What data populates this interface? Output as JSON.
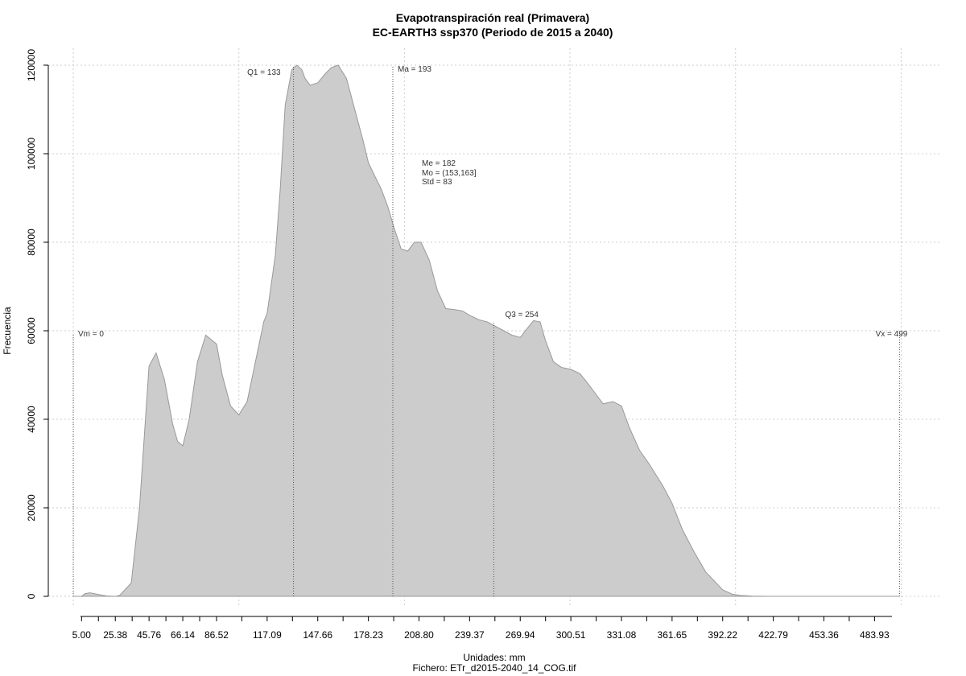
{
  "chart_data": {
    "type": "area",
    "title": "Evapotranspiración real (Primavera)",
    "subtitle": "EC-EARTH3 ssp370 (Periodo de 2015 a 2040)",
    "xlabel": "Unidades: mm",
    "ylabel": "Frecuencia",
    "footer": "Fichero: ETr_d2015-2040_14_COG.tif",
    "x_tick_labels": [
      "5.00",
      "25.38",
      "45.76",
      "66.14",
      "86.52",
      "117.09",
      "147.66",
      "178.23",
      "208.80",
      "239.37",
      "269.94",
      "300.51",
      "331.08",
      "361.65",
      "392.22",
      "422.79",
      "453.36",
      "483.93"
    ],
    "y_tick_labels": [
      "0",
      "20000",
      "40000",
      "60000",
      "80000",
      "100000",
      "120000"
    ],
    "xlim": [
      -0.5,
      510
    ],
    "ylim": [
      0,
      120000
    ],
    "grid": true,
    "fill_color": "#cccccc",
    "line_color": "#999999",
    "x": [
      0,
      5,
      7,
      10,
      20,
      25.38,
      28,
      30,
      35,
      40,
      45.76,
      50,
      55,
      60,
      63,
      66.14,
      70,
      75,
      80,
      86.52,
      90,
      95,
      100,
      105,
      110,
      115,
      117.09,
      122,
      125,
      128,
      132,
      135,
      138,
      140,
      143,
      147.66,
      152,
      156,
      160,
      165,
      170,
      175,
      178.23,
      182,
      186,
      190,
      194,
      198,
      202,
      206,
      210,
      215,
      220,
      225,
      230,
      235,
      239.37,
      245,
      250,
      255,
      260,
      265,
      270,
      273,
      278,
      282,
      285,
      290,
      295,
      300.51,
      306,
      310,
      315,
      320,
      326,
      331.08,
      336,
      342,
      348,
      356,
      361.65,
      368,
      375,
      382,
      392.22,
      398,
      403,
      410,
      420,
      430,
      440,
      453.36,
      470,
      483.93,
      499
    ],
    "y": [
      0,
      0,
      600,
      800,
      100,
      0,
      200,
      1000,
      3000,
      20000,
      52000,
      55000,
      49000,
      39000,
      35000,
      34000,
      40000,
      53000,
      59000,
      57000,
      50000,
      43000,
      41000,
      44000,
      53000,
      62000,
      64000,
      77000,
      92000,
      111000,
      119000,
      120000,
      119000,
      117000,
      115500,
      116000,
      118000,
      119500,
      120000,
      117000,
      110000,
      103000,
      98000,
      95000,
      92000,
      88000,
      83000,
      78500,
      78000,
      80000,
      80000,
      76000,
      69000,
      65000,
      64800,
      64500,
      63500,
      62500,
      62000,
      61000,
      60000,
      59000,
      58500,
      60000,
      62300,
      62000,
      58000,
      53000,
      51700,
      51300,
      50300,
      48500,
      46000,
      43500,
      44000,
      43000,
      38000,
      33000,
      29800,
      25000,
      21000,
      15000,
      10000,
      5500,
      1500,
      500,
      200,
      50,
      0,
      0,
      0,
      0,
      0,
      0,
      0
    ],
    "reference_lines": [
      {
        "label": "Vm = 0",
        "x": 0,
        "y": 59500
      },
      {
        "label": "Q1 = 133",
        "x": 133,
        "y": 120000
      },
      {
        "label": "Ma = 193",
        "x": 193,
        "y": 120000
      },
      {
        "label": "Q3 = 254",
        "x": 254,
        "y": 62000
      },
      {
        "label": "Vx = 499",
        "x": 499,
        "y": 59500
      }
    ],
    "stats": [
      "Me = 182",
      "Mo = (153,163]",
      "Std = 83"
    ]
  }
}
